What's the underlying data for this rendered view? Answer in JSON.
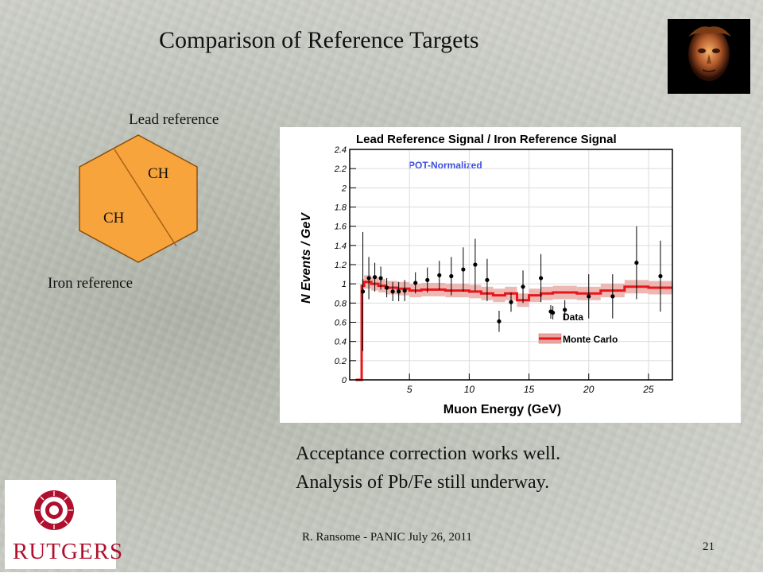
{
  "slide": {
    "title": "Comparison of Reference Targets",
    "lead_label": "Lead reference",
    "iron_label": "Iron reference",
    "ch_label_1": "CH",
    "ch_label_2": "CH",
    "body_line_1": "Acceptance correction works well.",
    "body_line_2": "Analysis of Pb/Fe still underway.",
    "footer": "R. Ransome - PANIC July 26, 2011",
    "page_number": "21",
    "logo_text": "RUTGERS",
    "colors": {
      "hexagon": "#f8a43c",
      "logo_red": "#b00f2d"
    }
  },
  "chart_data": {
    "type": "line",
    "title": "Lead Reference Signal / Iron Reference Signal",
    "annotation": "POT-Normalized",
    "xlabel": "Muon Energy (GeV)",
    "ylabel": "N Events / GeV",
    "xlim": [
      0,
      27
    ],
    "ylim": [
      0,
      2.4
    ],
    "x_ticks": [
      "5",
      "10",
      "15",
      "20",
      "25"
    ],
    "y_ticks": [
      "0",
      "0.2",
      "0.4",
      "0.6",
      "0.8",
      "1",
      "1.2",
      "1.4",
      "1.6",
      "1.8",
      "2",
      "2.2",
      "2.4"
    ],
    "legend_position": "bottom-right",
    "series": [
      {
        "name": "Data",
        "kind": "points-with-errors",
        "color": "#000000",
        "points": [
          {
            "x": 1.1,
            "y": 0.92,
            "err": 0.62
          },
          {
            "x": 1.6,
            "y": 1.06,
            "err": 0.22
          },
          {
            "x": 2.1,
            "y": 1.07,
            "err": 0.15
          },
          {
            "x": 2.6,
            "y": 1.06,
            "err": 0.12
          },
          {
            "x": 3.1,
            "y": 0.96,
            "err": 0.1
          },
          {
            "x": 3.6,
            "y": 0.92,
            "err": 0.1
          },
          {
            "x": 4.1,
            "y": 0.92,
            "err": 0.1
          },
          {
            "x": 4.6,
            "y": 0.93,
            "err": 0.11
          },
          {
            "x": 5.5,
            "y": 1.01,
            "err": 0.11
          },
          {
            "x": 6.5,
            "y": 1.04,
            "err": 0.13
          },
          {
            "x": 7.5,
            "y": 1.09,
            "err": 0.15
          },
          {
            "x": 8.5,
            "y": 1.08,
            "err": 0.2
          },
          {
            "x": 9.5,
            "y": 1.15,
            "err": 0.23
          },
          {
            "x": 10.5,
            "y": 1.2,
            "err": 0.27
          },
          {
            "x": 11.5,
            "y": 1.04,
            "err": 0.22
          },
          {
            "x": 12.5,
            "y": 0.61,
            "err": 0.11
          },
          {
            "x": 13.5,
            "y": 0.81,
            "err": 0.1
          },
          {
            "x": 14.5,
            "y": 0.97,
            "err": 0.17
          },
          {
            "x": 16.0,
            "y": 1.06,
            "err": 0.25
          },
          {
            "x": 17.0,
            "y": 0.7,
            "err": 0.07
          },
          {
            "x": 18.0,
            "y": 0.73,
            "err": 0.1
          },
          {
            "x": 20.0,
            "y": 0.87,
            "err": 0.23
          },
          {
            "x": 22.0,
            "y": 0.87,
            "err": 0.23
          },
          {
            "x": 24.0,
            "y": 1.22,
            "err": 0.38
          },
          {
            "x": 26.0,
            "y": 1.08,
            "err": 0.37
          }
        ]
      },
      {
        "name": "Monte Carlo",
        "kind": "step-with-band",
        "color": "#e8161b",
        "band_color": "#e8a6a0",
        "band_halfwidth": 0.07,
        "steps": [
          {
            "x0": 0.5,
            "x1": 1.0,
            "y": 0.0
          },
          {
            "x0": 1.0,
            "x1": 1.2,
            "y": 0.98
          },
          {
            "x0": 1.2,
            "x1": 1.8,
            "y": 1.02
          },
          {
            "x0": 1.8,
            "x1": 2.4,
            "y": 1.0
          },
          {
            "x0": 2.4,
            "x1": 3.0,
            "y": 0.98
          },
          {
            "x0": 3.0,
            "x1": 4.0,
            "y": 0.96
          },
          {
            "x0": 4.0,
            "x1": 5.0,
            "y": 0.95
          },
          {
            "x0": 5.0,
            "x1": 6.0,
            "y": 0.93
          },
          {
            "x0": 6.0,
            "x1": 8.0,
            "y": 0.94
          },
          {
            "x0": 8.0,
            "x1": 10.0,
            "y": 0.93
          },
          {
            "x0": 10.0,
            "x1": 11.0,
            "y": 0.92
          },
          {
            "x0": 11.0,
            "x1": 12.0,
            "y": 0.9
          },
          {
            "x0": 12.0,
            "x1": 13.0,
            "y": 0.88
          },
          {
            "x0": 13.0,
            "x1": 14.0,
            "y": 0.9
          },
          {
            "x0": 14.0,
            "x1": 15.0,
            "y": 0.83
          },
          {
            "x0": 15.0,
            "x1": 16.0,
            "y": 0.88
          },
          {
            "x0": 16.0,
            "x1": 17.0,
            "y": 0.9
          },
          {
            "x0": 17.0,
            "x1": 19.0,
            "y": 0.91
          },
          {
            "x0": 19.0,
            "x1": 21.0,
            "y": 0.9
          },
          {
            "x0": 21.0,
            "x1": 23.0,
            "y": 0.93
          },
          {
            "x0": 23.0,
            "x1": 25.0,
            "y": 0.97
          },
          {
            "x0": 25.0,
            "x1": 27.0,
            "y": 0.96
          }
        ]
      }
    ]
  }
}
